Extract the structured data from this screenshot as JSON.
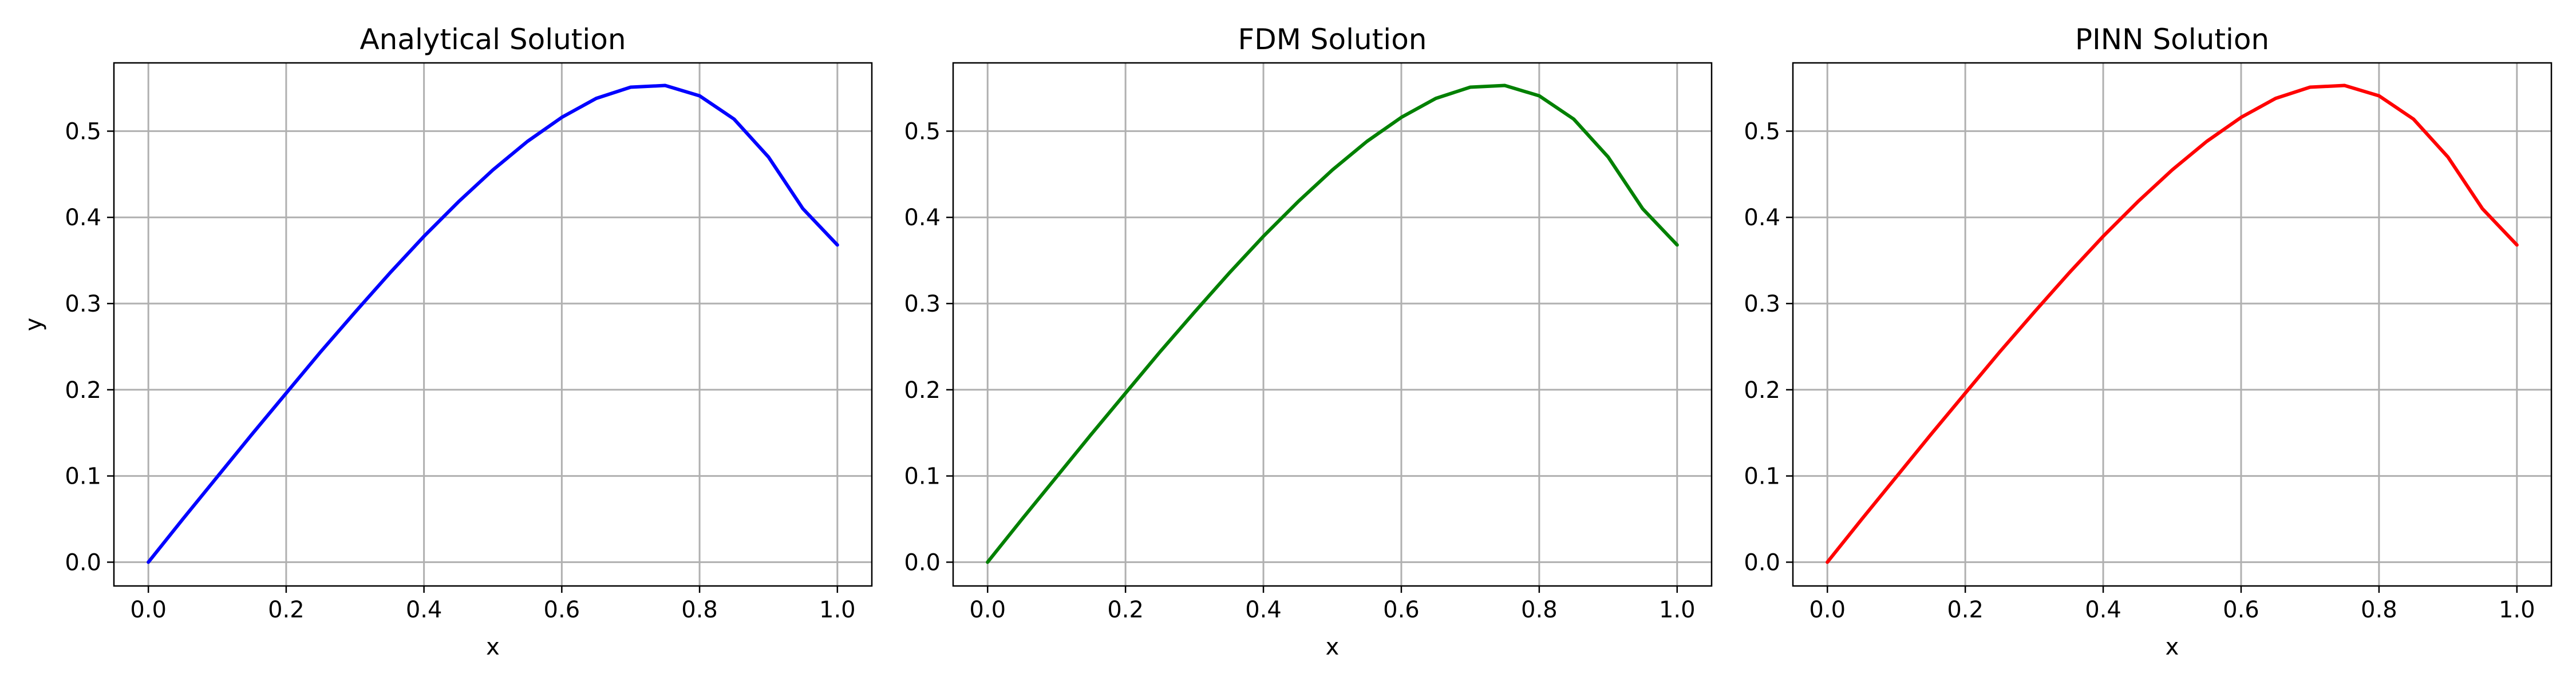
{
  "chart_data": [
    {
      "type": "line",
      "title": "Analytical Solution",
      "xlabel": "x",
      "ylabel": "y",
      "xlim": [
        -0.05,
        1.05
      ],
      "ylim": [
        -0.0276,
        0.5792
      ],
      "xticks": [
        0.0,
        0.2,
        0.4,
        0.6,
        0.8,
        1.0
      ],
      "yticks": [
        0.0,
        0.1,
        0.2,
        0.3,
        0.4,
        0.5
      ],
      "grid": true,
      "color": "#0000ff",
      "x": [
        0.0,
        0.05,
        0.1,
        0.15,
        0.2,
        0.25,
        0.3,
        0.35,
        0.4,
        0.45,
        0.5,
        0.55,
        0.6,
        0.65,
        0.7,
        0.75,
        0.8,
        0.85,
        0.9,
        0.95,
        1.0
      ],
      "y": [
        0.0,
        0.05,
        0.099,
        0.148,
        0.196,
        0.244,
        0.29,
        0.335,
        0.378,
        0.418,
        0.455,
        0.488,
        0.516,
        0.538,
        0.551,
        0.553,
        0.541,
        0.514,
        0.47,
        0.41,
        0.368
      ]
    },
    {
      "type": "line",
      "title": "FDM Solution",
      "xlabel": "x",
      "ylabel": "",
      "xlim": [
        -0.05,
        1.05
      ],
      "ylim": [
        -0.0276,
        0.5792
      ],
      "xticks": [
        0.0,
        0.2,
        0.4,
        0.6,
        0.8,
        1.0
      ],
      "yticks": [
        0.0,
        0.1,
        0.2,
        0.3,
        0.4,
        0.5
      ],
      "grid": true,
      "color": "#008000",
      "x": [
        0.0,
        0.05,
        0.1,
        0.15,
        0.2,
        0.25,
        0.3,
        0.35,
        0.4,
        0.45,
        0.5,
        0.55,
        0.6,
        0.65,
        0.7,
        0.75,
        0.8,
        0.85,
        0.9,
        0.95,
        1.0
      ],
      "y": [
        0.0,
        0.05,
        0.099,
        0.148,
        0.196,
        0.244,
        0.29,
        0.335,
        0.378,
        0.418,
        0.455,
        0.488,
        0.516,
        0.538,
        0.551,
        0.553,
        0.541,
        0.514,
        0.47,
        0.41,
        0.368
      ]
    },
    {
      "type": "line",
      "title": "PINN Solution",
      "xlabel": "x",
      "ylabel": "",
      "xlim": [
        -0.05,
        1.05
      ],
      "ylim": [
        -0.0276,
        0.5792
      ],
      "xticks": [
        0.0,
        0.2,
        0.4,
        0.6,
        0.8,
        1.0
      ],
      "yticks": [
        0.0,
        0.1,
        0.2,
        0.3,
        0.4,
        0.5
      ],
      "grid": true,
      "color": "#ff0000",
      "x": [
        0.0,
        0.05,
        0.1,
        0.15,
        0.2,
        0.25,
        0.3,
        0.35,
        0.4,
        0.45,
        0.5,
        0.55,
        0.6,
        0.65,
        0.7,
        0.75,
        0.8,
        0.85,
        0.9,
        0.95,
        1.0
      ],
      "y": [
        0.0,
        0.05,
        0.099,
        0.148,
        0.196,
        0.244,
        0.29,
        0.335,
        0.378,
        0.418,
        0.455,
        0.488,
        0.516,
        0.538,
        0.551,
        0.553,
        0.541,
        0.514,
        0.47,
        0.41,
        0.368
      ]
    }
  ]
}
